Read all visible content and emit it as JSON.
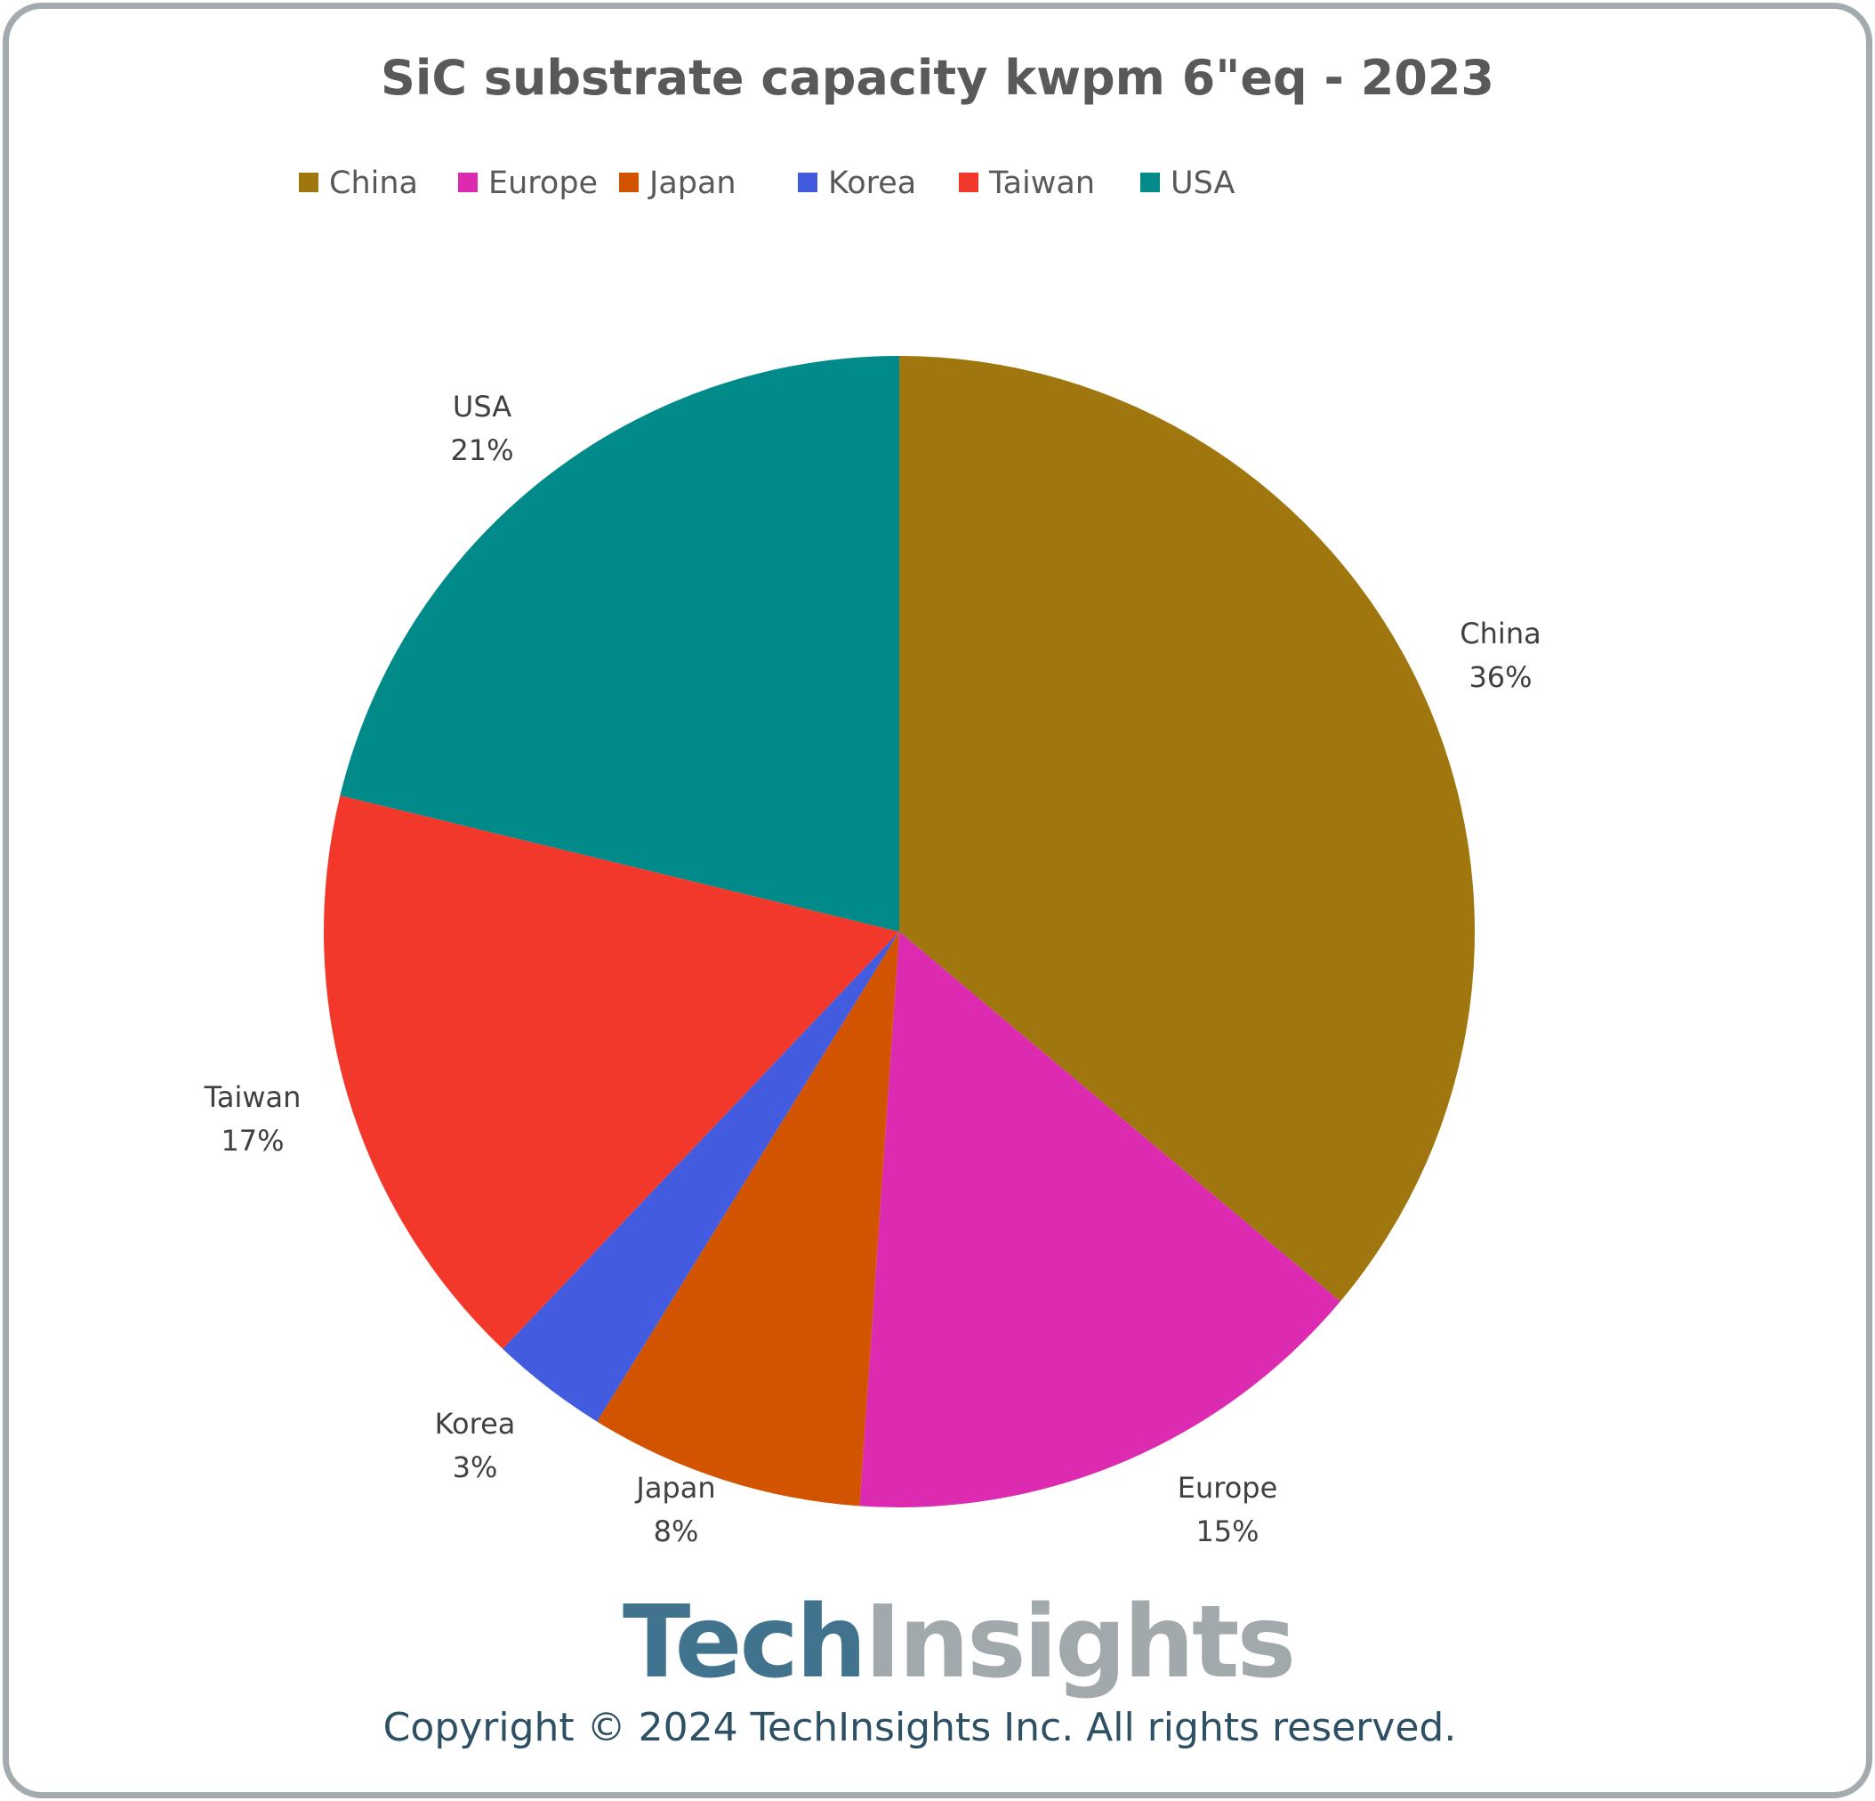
{
  "chart_data": {
    "type": "pie",
    "title": "SiC substrate capacity kwpm 6\"eq - 2023",
    "legend_position": "top",
    "start_angle": "12 o'clock, clockwise",
    "slices": [
      {
        "name": "China",
        "value": 36.1,
        "label": "36%",
        "color": "#a0760e"
      },
      {
        "name": "Europe",
        "value": 15.0,
        "label": "15%",
        "color": "#dc2ab1"
      },
      {
        "name": "Japan",
        "value": 7.7,
        "label": "8%",
        "color": "#d35400"
      },
      {
        "name": "Korea",
        "value": 3.3,
        "label": "3%",
        "color": "#435bdf"
      },
      {
        "name": "Taiwan",
        "value": 16.7,
        "label": "17%",
        "color": "#f2382b"
      },
      {
        "name": "USA",
        "value": 21.2,
        "label": "21%",
        "color": "#008b8a"
      }
    ]
  },
  "logo": {
    "part1": "Tech",
    "part2": "Insights",
    "color1": "#41738f",
    "color2": "#a2a9ad"
  },
  "copyright": "Copyright © 2024 TechInsights Inc.  All rights reserved."
}
